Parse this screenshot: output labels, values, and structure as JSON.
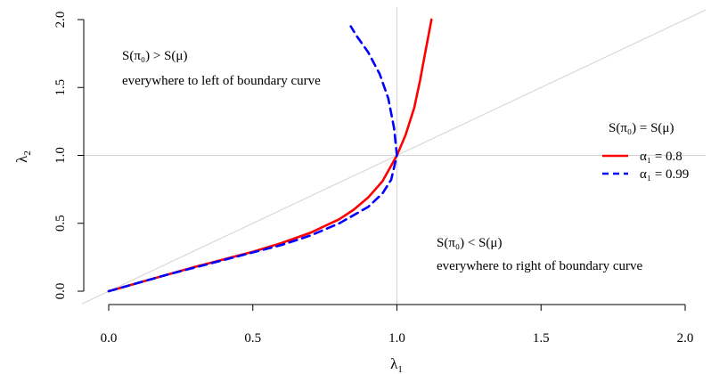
{
  "chart_data": {
    "type": "line",
    "xlabel": "λ",
    "xlabel_sub": "1",
    "ylabel": "λ",
    "ylabel_sub": "2",
    "xlim": [
      0,
      2
    ],
    "ylim": [
      0,
      2
    ],
    "xticks": [
      {
        "value": 0.0,
        "label": "0.0"
      },
      {
        "value": 0.5,
        "label": "0.5"
      },
      {
        "value": 1.0,
        "label": "1.0"
      },
      {
        "value": 1.5,
        "label": "1.5"
      },
      {
        "value": 2.0,
        "label": "2.0"
      }
    ],
    "yticks": [
      {
        "value": 0.0,
        "label": "0.0"
      },
      {
        "value": 0.5,
        "label": "0.5"
      },
      {
        "value": 1.0,
        "label": "1.0"
      },
      {
        "value": 1.5,
        "label": "1.5"
      },
      {
        "value": 2.0,
        "label": "2.0"
      }
    ],
    "reference_lines": {
      "diagonal": true,
      "vline_x": 1.0,
      "hline_y": 1.0,
      "color": "#d3d3d3"
    },
    "legend": {
      "title": "S(π₀) = S(μ)",
      "placement": "right"
    },
    "series": [
      {
        "name": "α₁ = 0.8",
        "color": "#ff0000",
        "dash": "solid",
        "x": [
          0.0,
          0.1,
          0.2,
          0.3,
          0.4,
          0.5,
          0.6,
          0.7,
          0.8,
          0.85,
          0.9,
          0.95,
          1.0,
          1.03,
          1.06,
          1.08,
          1.1,
          1.12
        ],
        "y": [
          0.0,
          0.06,
          0.12,
          0.18,
          0.235,
          0.29,
          0.355,
          0.43,
          0.53,
          0.6,
          0.69,
          0.81,
          1.0,
          1.15,
          1.35,
          1.55,
          1.78,
          2.0
        ]
      },
      {
        "name": "α₁ = 0.99",
        "color": "#0000ff",
        "dash": "dashed",
        "x": [
          0.0,
          0.1,
          0.2,
          0.3,
          0.4,
          0.5,
          0.6,
          0.7,
          0.8,
          0.9,
          0.95,
          0.98,
          1.0,
          0.99,
          0.97,
          0.94,
          0.9,
          0.86,
          0.84
        ],
        "y": [
          0.0,
          0.06,
          0.12,
          0.175,
          0.23,
          0.285,
          0.34,
          0.41,
          0.5,
          0.62,
          0.72,
          0.82,
          1.0,
          1.2,
          1.42,
          1.6,
          1.76,
          1.88,
          1.95
        ]
      }
    ],
    "annotations": [
      {
        "id": "left",
        "line1": "S(π₀) > S(μ)",
        "line2": "everywhere to left of boundary curve"
      },
      {
        "id": "right",
        "line1": "S(π₀) < S(μ)",
        "line2": "everywhere to right of boundary curve"
      }
    ]
  }
}
